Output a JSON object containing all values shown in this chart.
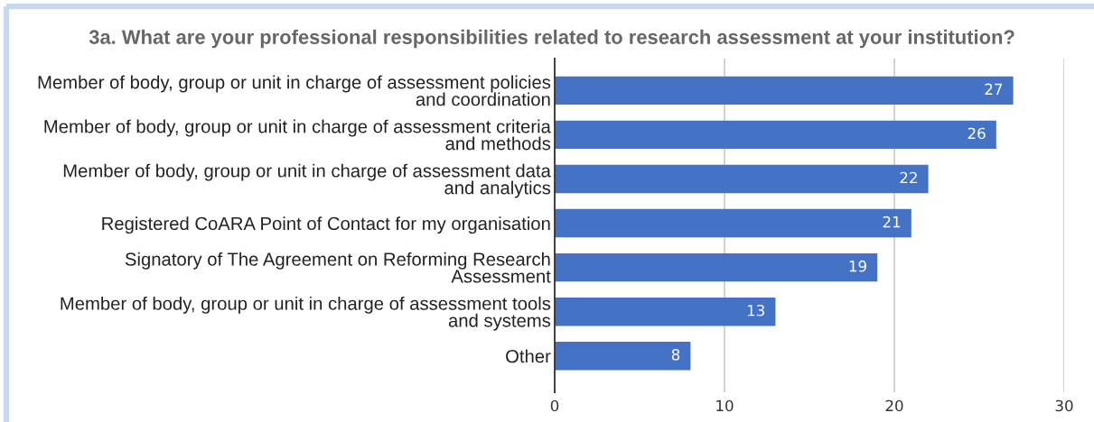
{
  "chart_data": {
    "type": "bar",
    "orientation": "horizontal",
    "title": "3a. What are your professional responsibilities related to research assessment at your institution?",
    "categories": [
      "Member of body, group or unit in charge of assessment policies\nand coordination",
      "Member of body, group or unit in charge of assessment criteria\nand methods",
      "Member of body, group or unit in charge of assessment data\nand analytics",
      "Registered CoARA Point of Contact for my organisation",
      "Signatory of The Agreement on Reforming Research\nAssessment",
      "Member of body, group or unit in charge of assessment tools\nand systems",
      "Other"
    ],
    "values": [
      27,
      26,
      22,
      21,
      19,
      13,
      8
    ],
    "color": "#4472c4",
    "xlim": [
      0,
      30
    ],
    "xticks": [
      0,
      10,
      20,
      30
    ],
    "grid": "x",
    "data_labels": true
  }
}
